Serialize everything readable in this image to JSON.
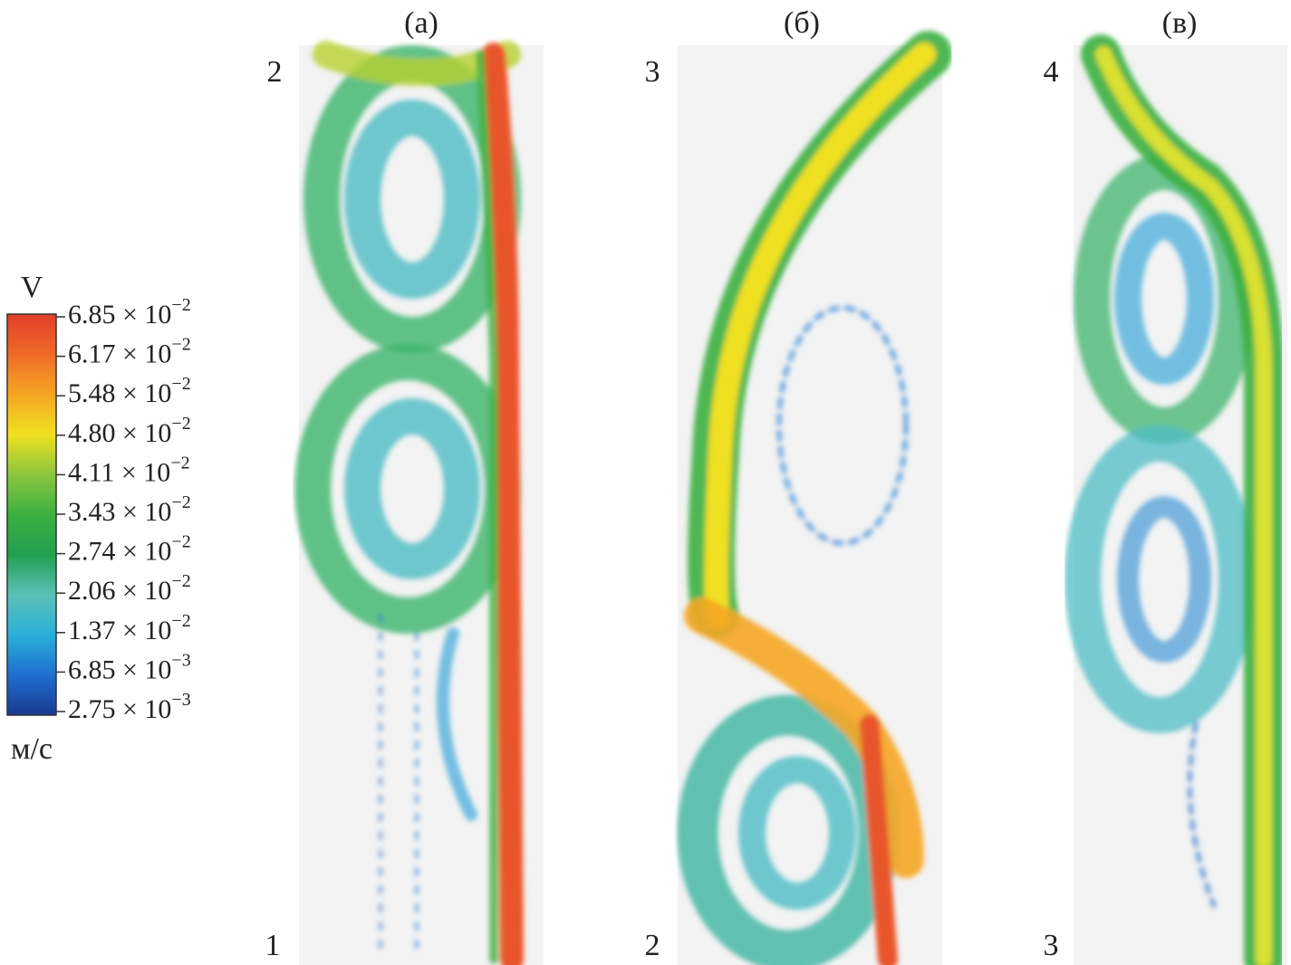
{
  "colorbar": {
    "title": "V",
    "unit": "м/с",
    "ticks": [
      {
        "mantissa": "6.85 × 10",
        "exponent": "−2"
      },
      {
        "mantissa": "6.17 × 10",
        "exponent": "−2"
      },
      {
        "mantissa": "5.48 × 10",
        "exponent": "−2"
      },
      {
        "mantissa": "4.80 × 10",
        "exponent": "−2"
      },
      {
        "mantissa": "4.11 × 10",
        "exponent": "−2"
      },
      {
        "mantissa": "3.43 × 10",
        "exponent": "−2"
      },
      {
        "mantissa": "2.74 × 10",
        "exponent": "−2"
      },
      {
        "mantissa": "2.06 × 10",
        "exponent": "−2"
      },
      {
        "mantissa": "1.37 × 10",
        "exponent": "−2"
      },
      {
        "mantissa": "6.85 × 10",
        "exponent": "−3"
      },
      {
        "mantissa": "2.75 × 10",
        "exponent": "−3"
      }
    ]
  },
  "panels": [
    {
      "label": "(а)",
      "top": "2",
      "bottom": "1"
    },
    {
      "label": "(б)",
      "top": "3",
      "bottom": "2"
    },
    {
      "label": "(в)",
      "top": "4",
      "bottom": "3"
    }
  ]
}
